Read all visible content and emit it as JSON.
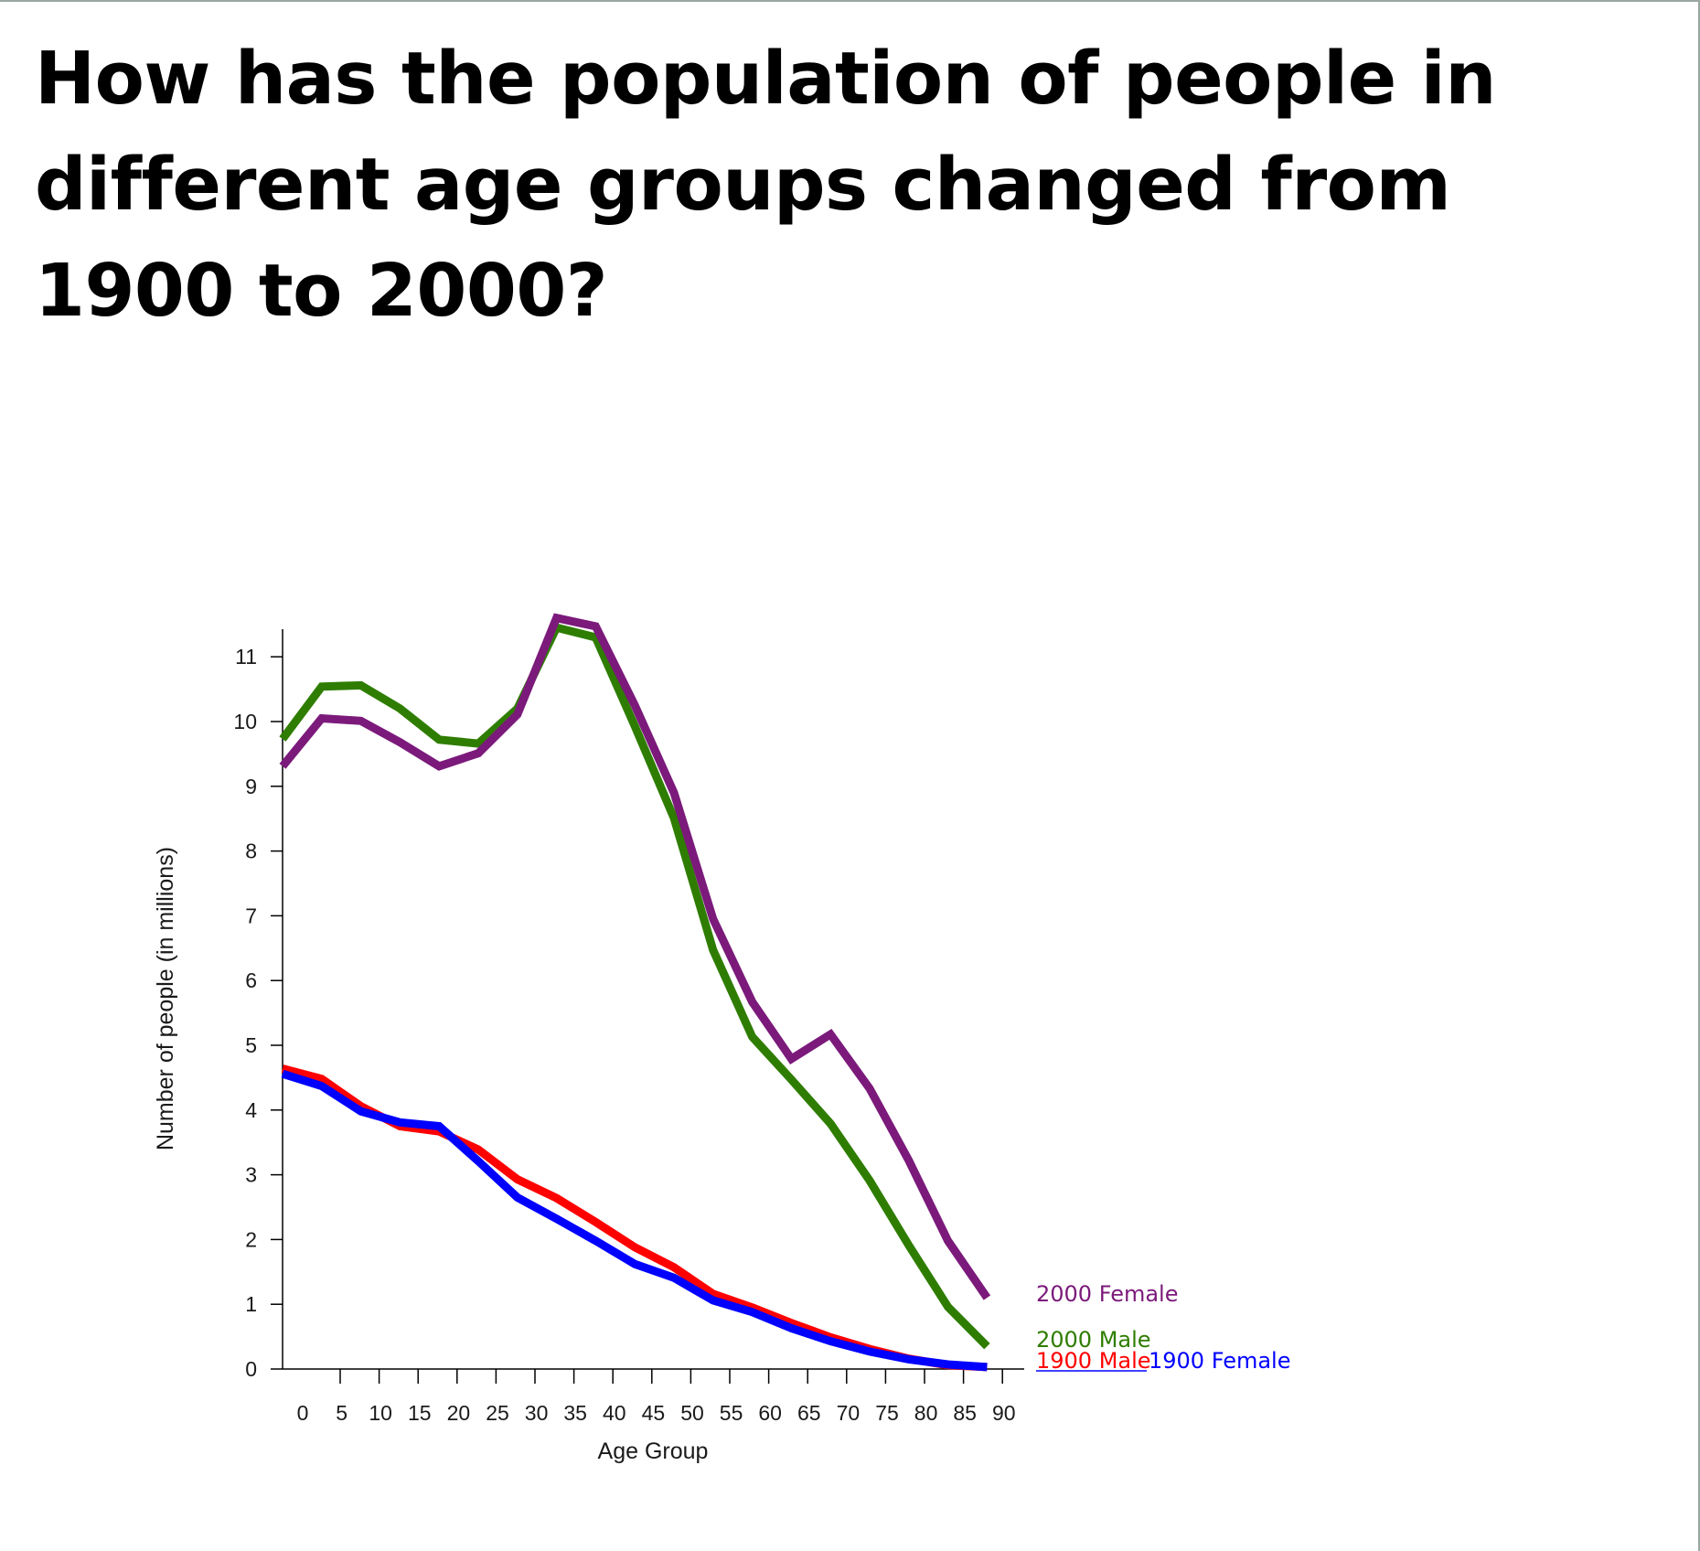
{
  "title": "How has the population of people in different age groups changed from 1900 to 2000?",
  "chart_data": {
    "type": "line",
    "xlabel": "Age Group",
    "ylabel": "Number of people (in millions)",
    "x": [
      0,
      5,
      10,
      15,
      20,
      25,
      30,
      35,
      40,
      45,
      50,
      55,
      60,
      65,
      70,
      75,
      80,
      85,
      90
    ],
    "x_ticks": [
      "0",
      "5",
      "10",
      "15",
      "20",
      "25",
      "30",
      "35",
      "40",
      "45",
      "50",
      "55",
      "60",
      "65",
      "70",
      "75",
      "80",
      "85",
      "90"
    ],
    "ylim": [
      0,
      11.5
    ],
    "y_ticks": [
      0,
      1,
      2,
      3,
      4,
      5,
      6,
      7,
      8,
      9,
      10,
      11
    ],
    "grid": false,
    "legend": "inline labels at line ends",
    "series": [
      {
        "name": "1900 Male",
        "color": "#ff0000",
        "values": [
          4.64,
          4.48,
          4.06,
          3.75,
          3.67,
          3.39,
          2.93,
          2.64,
          2.27,
          1.88,
          1.57,
          1.16,
          0.95,
          0.71,
          0.49,
          0.31,
          0.16,
          0.06,
          0.03
        ]
      },
      {
        "name": "1900 Female",
        "color": "#0000ff",
        "values": [
          4.56,
          4.37,
          3.98,
          3.81,
          3.75,
          3.21,
          2.65,
          2.32,
          1.98,
          1.62,
          1.41,
          1.06,
          0.88,
          0.63,
          0.43,
          0.27,
          0.15,
          0.07,
          0.03
        ]
      },
      {
        "name": "2000 Male",
        "color": "#2e7d00",
        "values": [
          9.73,
          10.54,
          10.56,
          10.2,
          9.72,
          9.66,
          10.2,
          11.45,
          11.3,
          9.93,
          8.51,
          6.47,
          5.13,
          4.47,
          3.79,
          2.91,
          1.91,
          0.96,
          0.35
        ]
      },
      {
        "name": "2000 Female",
        "color": "#7b1a7b",
        "values": [
          9.31,
          10.05,
          10.01,
          9.68,
          9.31,
          9.51,
          10.11,
          11.6,
          11.47,
          10.25,
          8.9,
          6.95,
          5.67,
          4.79,
          5.17,
          4.33,
          3.22,
          1.98,
          1.1
        ]
      }
    ]
  }
}
